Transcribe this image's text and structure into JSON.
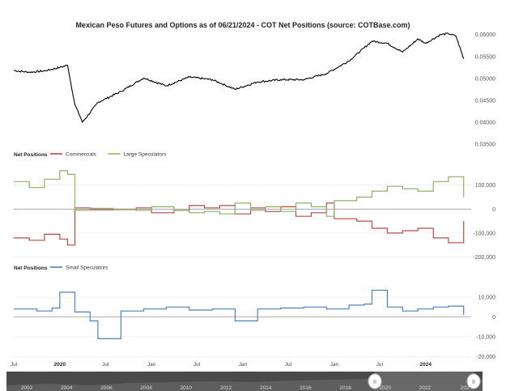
{
  "chart_data": [
    {
      "type": "line",
      "title": "Mexican Peso Futures and Options as of 06/21/2024 - COT Net Positions (source: COTBase.com)",
      "yticks": [
        "0.06000",
        "0.05500",
        "0.05000",
        "0.04500",
        "0.04000",
        "0.03500"
      ],
      "ylim": [
        0.035,
        0.0605
      ],
      "series": [
        {
          "color": "#000000",
          "x": [
            "2019-07",
            "2019-09",
            "2019-11",
            "2020-01",
            "2020-02",
            "2020-03",
            "2020-04",
            "2020-06",
            "2020-09",
            "2020-12",
            "2021-03",
            "2021-06",
            "2021-09",
            "2021-12",
            "2022-03",
            "2022-06",
            "2022-09",
            "2022-12",
            "2023-03",
            "2023-06",
            "2023-08",
            "2023-10",
            "2023-12",
            "2024-01",
            "2024-03",
            "2024-04",
            "2024-05",
            "2024-06"
          ],
          "values": [
            0.0518,
            0.0514,
            0.0517,
            0.0525,
            0.053,
            0.044,
            0.04,
            0.0445,
            0.047,
            0.0501,
            0.0483,
            0.0503,
            0.0497,
            0.0475,
            0.0492,
            0.0497,
            0.0497,
            0.0511,
            0.054,
            0.0585,
            0.058,
            0.056,
            0.059,
            0.058,
            0.06,
            0.0602,
            0.0597,
            0.0545
          ]
        }
      ]
    },
    {
      "type": "line",
      "legend_title": "Net Positions",
      "yticks": [
        "100,000",
        "0",
        "-100,000",
        "-200,000"
      ],
      "ylim": [
        -215000,
        180000
      ],
      "series": [
        {
          "name": "Commercials",
          "color": "#b94a48",
          "x": [
            "2019-07",
            "2019-09",
            "2019-11",
            "2020-01",
            "2020-02",
            "2020-03",
            "2020-05",
            "2020-08",
            "2020-11",
            "2021-01",
            "2021-04",
            "2021-06",
            "2021-08",
            "2021-10",
            "2021-12",
            "2022-02",
            "2022-04",
            "2022-06",
            "2022-08",
            "2022-10",
            "2022-12",
            "2023-01",
            "2023-04",
            "2023-06",
            "2023-08",
            "2023-10",
            "2023-12",
            "2024-02",
            "2024-04",
            "2024-06"
          ],
          "values": [
            -120000,
            -130000,
            -105000,
            -125000,
            -150000,
            5000,
            -3000,
            -2000,
            5000,
            -15000,
            -5000,
            15000,
            5000,
            15000,
            -20000,
            5000,
            -10000,
            10000,
            -30000,
            -15000,
            25000,
            -40000,
            -50000,
            -80000,
            -100000,
            -90000,
            -80000,
            -120000,
            -140000,
            -50000
          ]
        },
        {
          "name": "Large Speculators",
          "color": "#8fb06a",
          "x": [
            "2019-07",
            "2019-09",
            "2019-11",
            "2020-01",
            "2020-02",
            "2020-03",
            "2020-05",
            "2020-08",
            "2020-11",
            "2021-01",
            "2021-04",
            "2021-06",
            "2021-08",
            "2021-10",
            "2021-12",
            "2022-02",
            "2022-04",
            "2022-06",
            "2022-08",
            "2022-10",
            "2022-12",
            "2023-01",
            "2023-04",
            "2023-06",
            "2023-08",
            "2023-10",
            "2023-12",
            "2024-02",
            "2024-04",
            "2024-06"
          ],
          "values": [
            115000,
            90000,
            125000,
            160000,
            145000,
            -5000,
            3000,
            0,
            -5000,
            10000,
            -5000,
            -15000,
            -10000,
            -20000,
            25000,
            -5000,
            10000,
            -10000,
            25000,
            10000,
            -30000,
            35000,
            50000,
            75000,
            95000,
            85000,
            75000,
            115000,
            135000,
            50000
          ]
        }
      ]
    },
    {
      "type": "line",
      "legend_title": "Net Positions",
      "yticks": [
        "10,000",
        "0",
        "-10,000",
        "-20,000"
      ],
      "ylim": [
        -21500,
        17000
      ],
      "series": [
        {
          "name": "Small Speculators",
          "color": "#4f81bd",
          "x": [
            "2019-07",
            "2019-10",
            "2019-12",
            "2020-01",
            "2020-03",
            "2020-05",
            "2020-06",
            "2020-09",
            "2020-12",
            "2021-03",
            "2021-06",
            "2021-09",
            "2021-12",
            "2022-03",
            "2022-06",
            "2022-09",
            "2022-12",
            "2023-03",
            "2023-05",
            "2023-06",
            "2023-08",
            "2023-10",
            "2023-12",
            "2024-02",
            "2024-04",
            "2024-06"
          ],
          "values": [
            4000,
            3000,
            4500,
            12500,
            2500,
            -2000,
            -11000,
            3000,
            4000,
            5000,
            3500,
            4000,
            -2000,
            4000,
            4500,
            5000,
            4000,
            6000,
            6500,
            13500,
            5000,
            3000,
            4000,
            5000,
            5500,
            1000
          ]
        }
      ]
    }
  ],
  "x_axis": {
    "labels": [
      {
        "text": "Jul",
        "bold": false
      },
      {
        "text": "2020",
        "bold": true
      },
      {
        "text": "Jul",
        "bold": false
      },
      {
        "text": "Jan",
        "bold": false
      },
      {
        "text": "Jul",
        "bold": false
      },
      {
        "text": "Jan",
        "bold": false
      },
      {
        "text": "Jul",
        "bold": false
      },
      {
        "text": "Jan",
        "bold": false
      },
      {
        "text": "Jul",
        "bold": false
      },
      {
        "text": "2024",
        "bold": true
      }
    ]
  },
  "navigator": {
    "years": [
      "2002",
      "2004",
      "2006",
      "2008",
      "2010",
      "2012",
      "2014",
      "2016",
      "2018",
      "2020",
      "2022",
      "202"
    ],
    "handle_glyph": "II",
    "range": [
      "2019-07",
      "2024-06"
    ]
  }
}
